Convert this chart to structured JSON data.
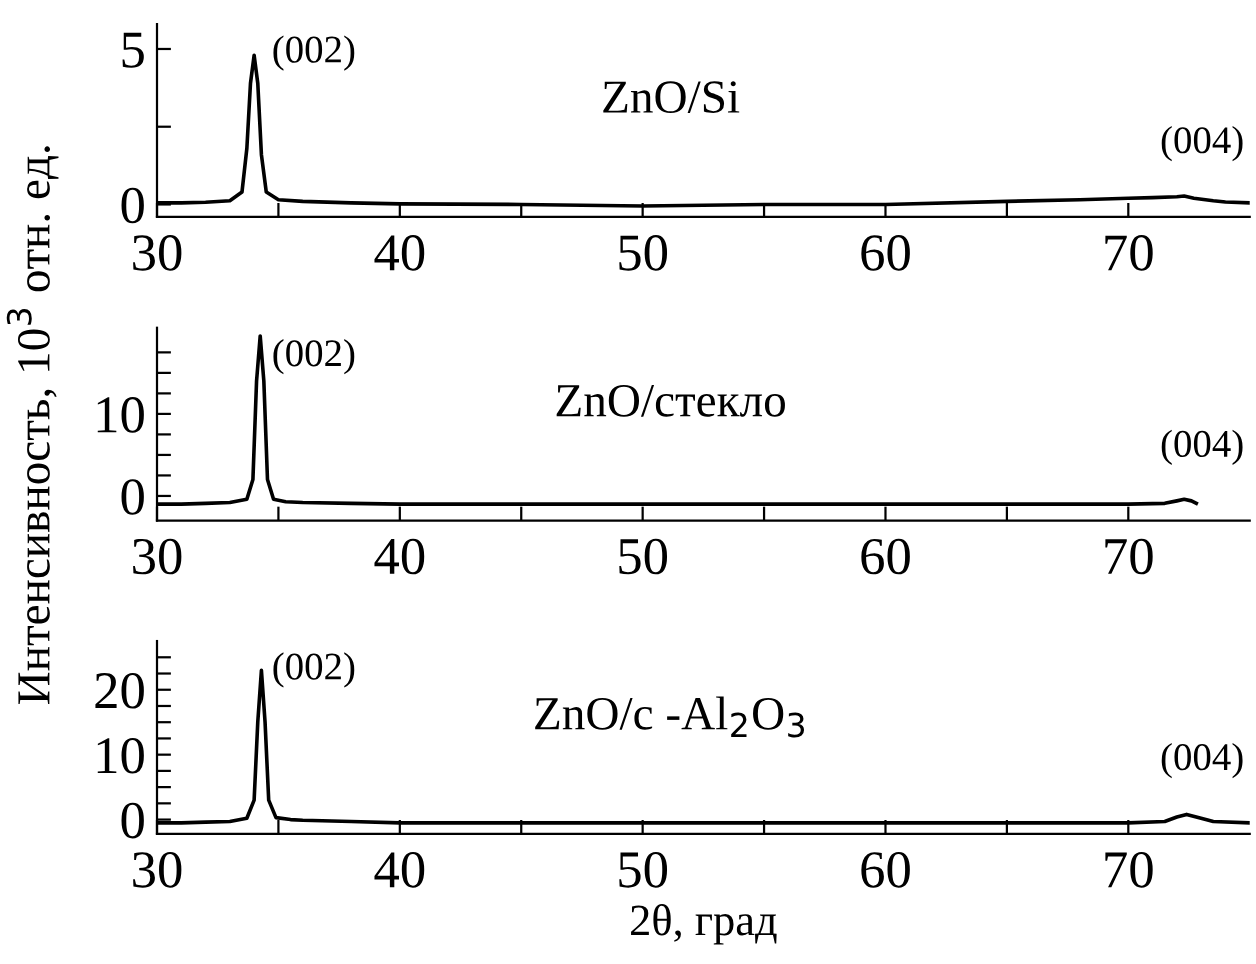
{
  "chart_data": [
    {
      "type": "line",
      "x": [
        30,
        31,
        32,
        33,
        33.5,
        33.7,
        33.85,
        34.0,
        34.15,
        34.3,
        34.5,
        35,
        36,
        38,
        40,
        45,
        50,
        55,
        60,
        65,
        68,
        70,
        71,
        72,
        72.3,
        72.7,
        73.5,
        74,
        75
      ],
      "series": [
        {
          "color": "#000000",
          "values": [
            0.05,
            0.05,
            0.07,
            0.12,
            0.4,
            1.8,
            3.9,
            4.8,
            3.9,
            1.6,
            0.4,
            0.15,
            0.1,
            0.05,
            0.02,
            0.0,
            -0.05,
            0.0,
            0.0,
            0.1,
            0.15,
            0.2,
            0.22,
            0.25,
            0.27,
            0.2,
            0.12,
            0.08,
            0.05
          ]
        }
      ],
      "xlim": [
        30,
        75
      ],
      "xticks": [
        30,
        {
          "value": 35,
          "label": null
        },
        40,
        {
          "value": 45,
          "label": null
        },
        50,
        {
          "value": 55,
          "label": null
        },
        60,
        {
          "value": 65,
          "label": null
        },
        70
      ],
      "ylim": [
        -0.4,
        5.8
      ],
      "yticks": [
        0,
        {
          "value": 2.5,
          "label": null
        },
        5
      ],
      "annotations": [
        "(002)",
        "(004)",
        "ZnO/Si"
      ]
    },
    {
      "type": "line",
      "x": [
        30,
        31,
        32,
        33,
        33.7,
        33.95,
        34.1,
        34.25,
        34.4,
        34.55,
        34.8,
        35.3,
        36,
        38,
        40,
        45,
        50,
        55,
        60,
        65,
        70,
        71.5,
        72,
        72.3,
        72.6,
        72.8
      ],
      "series": [
        {
          "color": "#000000",
          "values": [
            -1,
            -1,
            -0.9,
            -0.8,
            -0.4,
            2,
            14,
            19.5,
            14,
            2,
            -0.4,
            -0.7,
            -0.8,
            -0.9,
            -1,
            -1,
            -1,
            -1,
            -1,
            -1,
            -1,
            -0.9,
            -0.6,
            -0.4,
            -0.6,
            -0.9
          ]
        }
      ],
      "xlim": [
        30,
        75
      ],
      "xticks": [
        30,
        {
          "value": 35,
          "label": null
        },
        40,
        {
          "value": 45,
          "label": null
        },
        50,
        {
          "value": 55,
          "label": null
        },
        60,
        {
          "value": 65,
          "label": null
        },
        70
      ],
      "ylim": [
        -3,
        20.5
      ],
      "yticks": [
        0,
        {
          "value": 2.5,
          "label": null
        },
        {
          "value": 5,
          "label": null
        },
        {
          "value": 7.5,
          "label": null
        },
        10,
        {
          "value": 12.5,
          "label": null
        },
        {
          "value": 15,
          "label": null
        },
        {
          "value": 17.5,
          "label": null
        }
      ],
      "ylabel": "Интенсивность, 10$^{3}$ отн. ед.",
      "annotations": [
        "(002)",
        "(004)",
        "ZnO/стекло"
      ]
    },
    {
      "type": "line",
      "x": [
        30,
        31,
        32,
        33,
        33.7,
        34.0,
        34.15,
        34.3,
        34.45,
        34.6,
        34.9,
        35.5,
        36,
        38,
        40,
        45,
        50,
        55,
        60,
        65,
        70,
        71.5,
        72,
        72.4,
        72.8,
        73.5,
        75
      ],
      "series": [
        {
          "color": "#000000",
          "values": [
            -0.5,
            -0.5,
            -0.4,
            -0.3,
            0.2,
            3,
            15,
            23,
            15,
            3,
            0.3,
            0,
            -0.1,
            -0.3,
            -0.5,
            -0.5,
            -0.5,
            -0.5,
            -0.5,
            -0.5,
            -0.5,
            -0.3,
            0.4,
            0.8,
            0.4,
            -0.3,
            -0.5
          ]
        }
      ],
      "xlim": [
        30,
        75
      ],
      "xticks": [
        30,
        {
          "value": 35,
          "label": null
        },
        40,
        {
          "value": 45,
          "label": null
        },
        50,
        {
          "value": 55,
          "label": null
        },
        60,
        {
          "value": 65,
          "label": null
        },
        70
      ],
      "ylim": [
        -2.2,
        27.5
      ],
      "yticks": [
        0,
        {
          "value": 2.5,
          "label": null
        },
        {
          "value": 5,
          "label": null
        },
        {
          "value": 7.5,
          "label": null
        },
        10,
        {
          "value": 12.5,
          "label": null
        },
        {
          "value": 15,
          "label": null
        },
        {
          "value": 17.5,
          "label": null
        },
        20,
        {
          "value": 22.5,
          "label": null
        },
        {
          "value": 25,
          "label": null
        }
      ],
      "xlabel": "2θ, град",
      "annotations": [
        "(002)",
        "(004)",
        "ZnO/c -Al$_{2}$O$_{3}$"
      ]
    }
  ]
}
